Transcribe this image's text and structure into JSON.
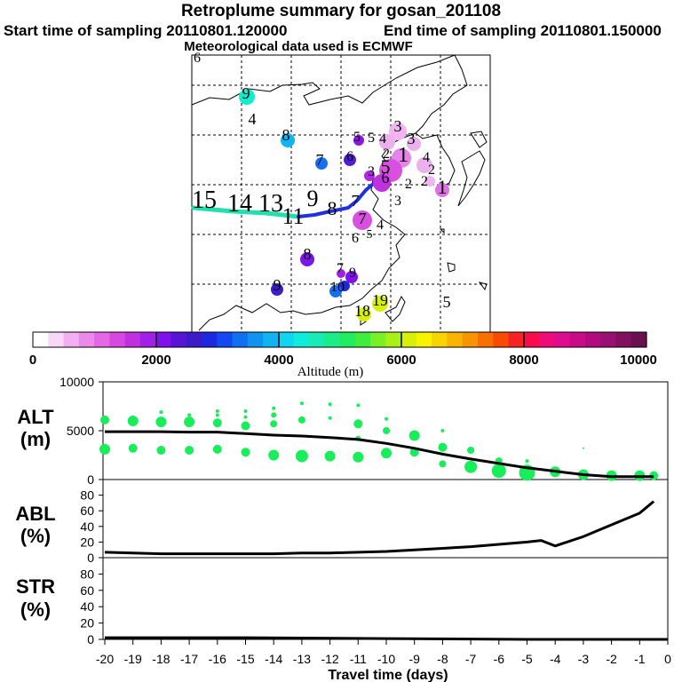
{
  "header": {
    "title": "Retroplume summary for gosan_201108",
    "start": "Start time of sampling 20110801.120000",
    "end": "End time of sampling 20110801.150000",
    "met": "Meteorological data used is ECMWF"
  },
  "map": {
    "labels": [
      {
        "t": "6",
        "x": 222,
        "y": 70,
        "s": 16
      },
      {
        "t": "9",
        "x": 277,
        "y": 111,
        "s": 18
      },
      {
        "t": "4",
        "x": 284,
        "y": 140,
        "s": 18
      },
      {
        "t": "8",
        "x": 322,
        "y": 158,
        "s": 18
      },
      {
        "t": "7",
        "x": 360,
        "y": 186,
        "s": 18
      },
      {
        "t": "5",
        "x": 402,
        "y": 159,
        "s": 16
      },
      {
        "t": "6",
        "x": 394,
        "y": 181,
        "s": 16
      },
      {
        "t": "3",
        "x": 448,
        "y": 148,
        "s": 18
      },
      {
        "t": "3",
        "x": 463,
        "y": 162,
        "s": 18
      },
      {
        "t": "5",
        "x": 418,
        "y": 160,
        "s": 16
      },
      {
        "t": "4",
        "x": 431,
        "y": 161,
        "s": 16
      },
      {
        "t": "2",
        "x": 435,
        "y": 178,
        "s": 16
      },
      {
        "t": "1",
        "x": 454,
        "y": 182,
        "s": 24
      },
      {
        "t": "4",
        "x": 480,
        "y": 182,
        "s": 16
      },
      {
        "t": "2",
        "x": 486,
        "y": 196,
        "s": 16
      },
      {
        "t": "5",
        "x": 434,
        "y": 195,
        "s": 22
      },
      {
        "t": "3",
        "x": 418,
        "y": 198,
        "s": 16
      },
      {
        "t": "6",
        "x": 434,
        "y": 206,
        "s": 18
      },
      {
        "t": "2",
        "x": 460,
        "y": 212,
        "s": 16
      },
      {
        "t": "2",
        "x": 478,
        "y": 209,
        "s": 16
      },
      {
        "t": "1",
        "x": 498,
        "y": 218,
        "s": 22
      },
      {
        "t": "3",
        "x": 448,
        "y": 231,
        "s": 16
      },
      {
        "t": "7",
        "x": 400,
        "y": 232,
        "s": 18
      },
      {
        "t": "7",
        "x": 408,
        "y": 252,
        "s": 18
      },
      {
        "t": "4",
        "x": 428,
        "y": 258,
        "s": 16
      },
      {
        "t": "5",
        "x": 416,
        "y": 268,
        "s": 14
      },
      {
        "t": "6",
        "x": 400,
        "y": 273,
        "s": 16
      },
      {
        "t": "15",
        "x": 230,
        "y": 234,
        "s": 28
      },
      {
        "t": "14",
        "x": 270,
        "y": 238,
        "s": 28
      },
      {
        "t": "13",
        "x": 305,
        "y": 238,
        "s": 28
      },
      {
        "t": "9",
        "x": 352,
        "y": 232,
        "s": 26
      },
      {
        "t": "8",
        "x": 374,
        "y": 242,
        "s": 22
      },
      {
        "t": "11",
        "x": 330,
        "y": 252,
        "s": 26
      },
      {
        "t": "8",
        "x": 346,
        "y": 292,
        "s": 18
      },
      {
        "t": "7",
        "x": 383,
        "y": 307,
        "s": 16
      },
      {
        "t": "9",
        "x": 397,
        "y": 312,
        "s": 16
      },
      {
        "t": "9",
        "x": 312,
        "y": 327,
        "s": 18
      },
      {
        "t": "10",
        "x": 380,
        "y": 328,
        "s": 16
      },
      {
        "t": "19",
        "x": 428,
        "y": 344,
        "s": 18
      },
      {
        "t": "18",
        "x": 408,
        "y": 356,
        "s": 18
      },
      {
        "t": "5",
        "x": 503,
        "y": 346,
        "s": 18
      }
    ]
  },
  "colorbar": {
    "ticks": [
      "0",
      "2000",
      "4000",
      "6000",
      "8000",
      "10000"
    ],
    "label": "Altitude (m)",
    "colors": [
      "#ffffff",
      "#f8d7f8",
      "#f2b0f2",
      "#ec8aec",
      "#e468e6",
      "#d848e0",
      "#c030de",
      "#a020e8",
      "#8010ec",
      "#5a14d4",
      "#3c1cc8",
      "#1e28dc",
      "#1448f0",
      "#1070f0",
      "#1094f0",
      "#10b4f0",
      "#10d4f0",
      "#10ecdc",
      "#18ecb4",
      "#1cec88",
      "#20ec60",
      "#40ec40",
      "#78f028",
      "#a8f018",
      "#d8f008",
      "#f8f400",
      "#f8d400",
      "#f8b400",
      "#f89400",
      "#f87000",
      "#f84c00",
      "#f82424",
      "#f80c4c",
      "#f00c78",
      "#e00c90",
      "#c80c88",
      "#b00c80",
      "#981070",
      "#801060",
      "#681050"
    ]
  },
  "panels": {
    "alt": {
      "label1": "ALT",
      "label2": "(m)"
    },
    "abl": {
      "label1": "ABL",
      "label2": "(%)"
    },
    "str": {
      "label1": "STR",
      "label2": "(%)"
    }
  },
  "chart_data": [
    {
      "type": "scatter",
      "name": "alt",
      "title": "",
      "ylabel": "ALT (m)",
      "xlim": [
        -20,
        0
      ],
      "ylim": [
        0,
        10000
      ],
      "yticks": [
        "0",
        "5000",
        "10000"
      ],
      "x": [
        -20,
        -19,
        -18,
        -17,
        -16,
        -15,
        -14,
        -13,
        -12,
        -11,
        -10,
        -9,
        -8,
        -7,
        -6,
        -5,
        -4,
        -3,
        -2,
        -1,
        -0.5
      ],
      "line": [
        4900,
        4900,
        4900,
        4850,
        4850,
        4700,
        4550,
        4450,
        4300,
        4100,
        3700,
        3200,
        2600,
        2100,
        1650,
        1200,
        850,
        500,
        300,
        300,
        300
      ],
      "dots": [
        {
          "x": -20,
          "y": 6100,
          "r": 5
        },
        {
          "x": -20,
          "y": 3100,
          "r": 6
        },
        {
          "x": -19,
          "y": 6000,
          "r": 6
        },
        {
          "x": -19,
          "y": 3200,
          "r": 5
        },
        {
          "x": -18,
          "y": 6900,
          "r": 2
        },
        {
          "x": -18,
          "y": 5900,
          "r": 6
        },
        {
          "x": -18,
          "y": 3000,
          "r": 5
        },
        {
          "x": -17,
          "y": 6600,
          "r": 2
        },
        {
          "x": -17,
          "y": 5900,
          "r": 6
        },
        {
          "x": -17,
          "y": 3000,
          "r": 5
        },
        {
          "x": -16,
          "y": 7000,
          "r": 2
        },
        {
          "x": -16,
          "y": 6600,
          "r": 2
        },
        {
          "x": -16,
          "y": 5800,
          "r": 5
        },
        {
          "x": -16,
          "y": 3100,
          "r": 5
        },
        {
          "x": -15,
          "y": 7000,
          "r": 2
        },
        {
          "x": -15,
          "y": 6400,
          "r": 2
        },
        {
          "x": -15,
          "y": 5500,
          "r": 5
        },
        {
          "x": -15,
          "y": 2800,
          "r": 5
        },
        {
          "x": -14,
          "y": 7300,
          "r": 2
        },
        {
          "x": -14,
          "y": 6600,
          "r": 3
        },
        {
          "x": -14,
          "y": 5700,
          "r": 4
        },
        {
          "x": -14,
          "y": 2500,
          "r": 6
        },
        {
          "x": -13,
          "y": 7800,
          "r": 2
        },
        {
          "x": -13,
          "y": 6100,
          "r": 4
        },
        {
          "x": -13,
          "y": 2400,
          "r": 7
        },
        {
          "x": -12,
          "y": 7700,
          "r": 2
        },
        {
          "x": -12,
          "y": 6300,
          "r": 2
        },
        {
          "x": -12,
          "y": 2400,
          "r": 6
        },
        {
          "x": -11,
          "y": 7600,
          "r": 2
        },
        {
          "x": -11,
          "y": 5700,
          "r": 5
        },
        {
          "x": -11,
          "y": 4200,
          "r": 3
        },
        {
          "x": -11,
          "y": 2300,
          "r": 6
        },
        {
          "x": -10,
          "y": 6200,
          "r": 2
        },
        {
          "x": -10,
          "y": 5000,
          "r": 4
        },
        {
          "x": -10,
          "y": 2700,
          "r": 6
        },
        {
          "x": -9,
          "y": 4500,
          "r": 6
        },
        {
          "x": -9,
          "y": 2800,
          "r": 5
        },
        {
          "x": -8,
          "y": 5000,
          "r": 2
        },
        {
          "x": -8,
          "y": 3300,
          "r": 5
        },
        {
          "x": -8,
          "y": 1600,
          "r": 4
        },
        {
          "x": -7,
          "y": 3000,
          "r": 4
        },
        {
          "x": -7,
          "y": 1300,
          "r": 7
        },
        {
          "x": -6,
          "y": 1900,
          "r": 4
        },
        {
          "x": -6,
          "y": 900,
          "r": 8
        },
        {
          "x": -5,
          "y": 1900,
          "r": 2
        },
        {
          "x": -5,
          "y": 700,
          "r": 9
        },
        {
          "x": -4,
          "y": 800,
          "r": 6
        },
        {
          "x": -3,
          "y": 3200,
          "r": 1
        },
        {
          "x": -3,
          "y": 500,
          "r": 6
        },
        {
          "x": -2,
          "y": 400,
          "r": 6
        },
        {
          "x": -1,
          "y": 400,
          "r": 6
        },
        {
          "x": -0.5,
          "y": 400,
          "r": 5
        }
      ]
    },
    {
      "type": "line",
      "name": "abl",
      "ylabel": "ABL (%)",
      "xlim": [
        -20,
        0
      ],
      "ylim": [
        0,
        100
      ],
      "yticks": [
        "0",
        "20",
        "40",
        "60",
        "80"
      ],
      "x": [
        -20,
        -19,
        -18,
        -17,
        -16,
        -15,
        -14,
        -13,
        -12,
        -11,
        -10,
        -9,
        -8,
        -7,
        -6,
        -5,
        -4.5,
        -4,
        -3,
        -2,
        -1,
        -0.5
      ],
      "y": [
        7,
        6,
        5,
        5,
        5,
        5,
        5,
        6,
        6,
        7,
        8,
        10,
        12,
        14,
        17,
        20,
        22,
        15,
        27,
        42,
        57,
        72
      ]
    },
    {
      "type": "line",
      "name": "str",
      "ylabel": "STR (%)",
      "xlim": [
        -20,
        0
      ],
      "ylim": [
        0,
        100
      ],
      "yticks": [
        "0",
        "20",
        "40",
        "60",
        "80"
      ],
      "x": [
        -20,
        -15,
        -10,
        -5,
        0
      ],
      "y": [
        2,
        2,
        1,
        0,
        0
      ]
    }
  ],
  "xaxis": {
    "ticks": [
      "-20",
      "-19",
      "-18",
      "-17",
      "-16",
      "-15",
      "-14",
      "-13",
      "-12",
      "-11",
      "-10",
      "-9",
      "-8",
      "-7",
      "-6",
      "-5",
      "-4",
      "-3",
      "-2",
      "-1",
      "0"
    ],
    "label": "Travel time (days)"
  },
  "plume_colors": {
    "line_cyan": "#20e0b0",
    "line_blue": "#2030e0",
    "dot_green": "#18ee5a",
    "trace": "#000000"
  }
}
